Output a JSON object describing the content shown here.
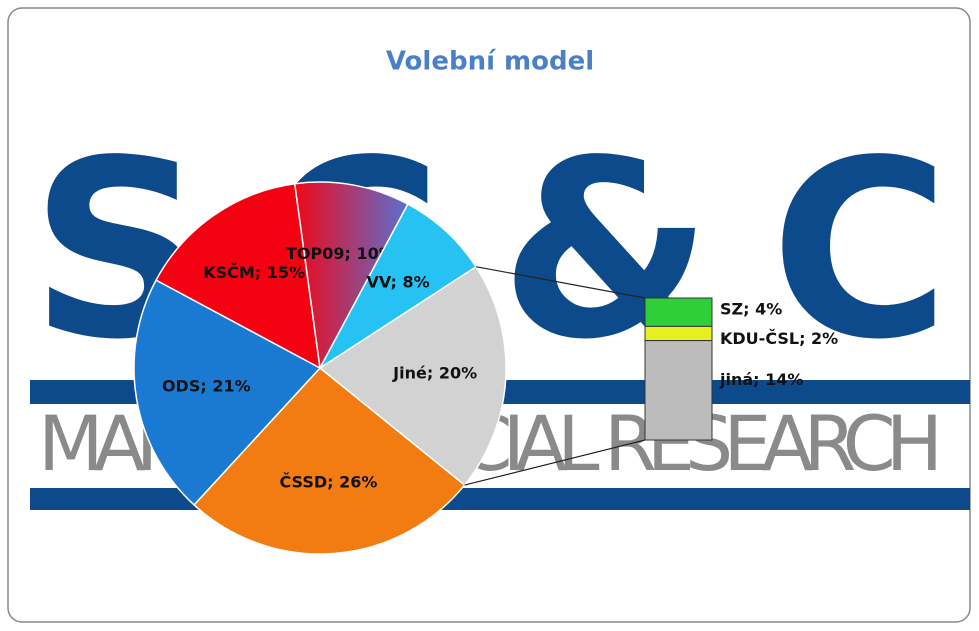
{
  "chart_data": {
    "type": "pie-of-bar",
    "title": "Volební model",
    "background_logo": "SC&C",
    "background_tagline": "MARKET & SOCIAL RESEARCH",
    "categories": [
      "Jiné",
      "ČSSD",
      "ODS",
      "KSČM",
      "TOP09",
      "VV"
    ],
    "values": [
      20,
      26,
      21,
      15,
      10,
      8
    ],
    "value_labels": [
      "Jiné; 20%",
      "ČSSD; 26%",
      "ODS; 21%",
      "KSČM; 15%",
      "TOP09; 10%",
      "VV; 8%"
    ],
    "colors": [
      "#d2d2d2",
      "#f27c12",
      "#1a7ad2",
      "#f40212",
      "#9a3c9c",
      "#26c2f4"
    ],
    "breakdown": {
      "categories": [
        "SZ",
        "KDU-ČSL",
        "jiná"
      ],
      "values": [
        4,
        2,
        14
      ],
      "value_labels": [
        "SZ; 4%",
        "KDU-ČSL; 2%",
        "jiná; 14%"
      ],
      "colors": [
        "#2fcf3a",
        "#e6f020",
        "#bcbcbc"
      ]
    }
  }
}
